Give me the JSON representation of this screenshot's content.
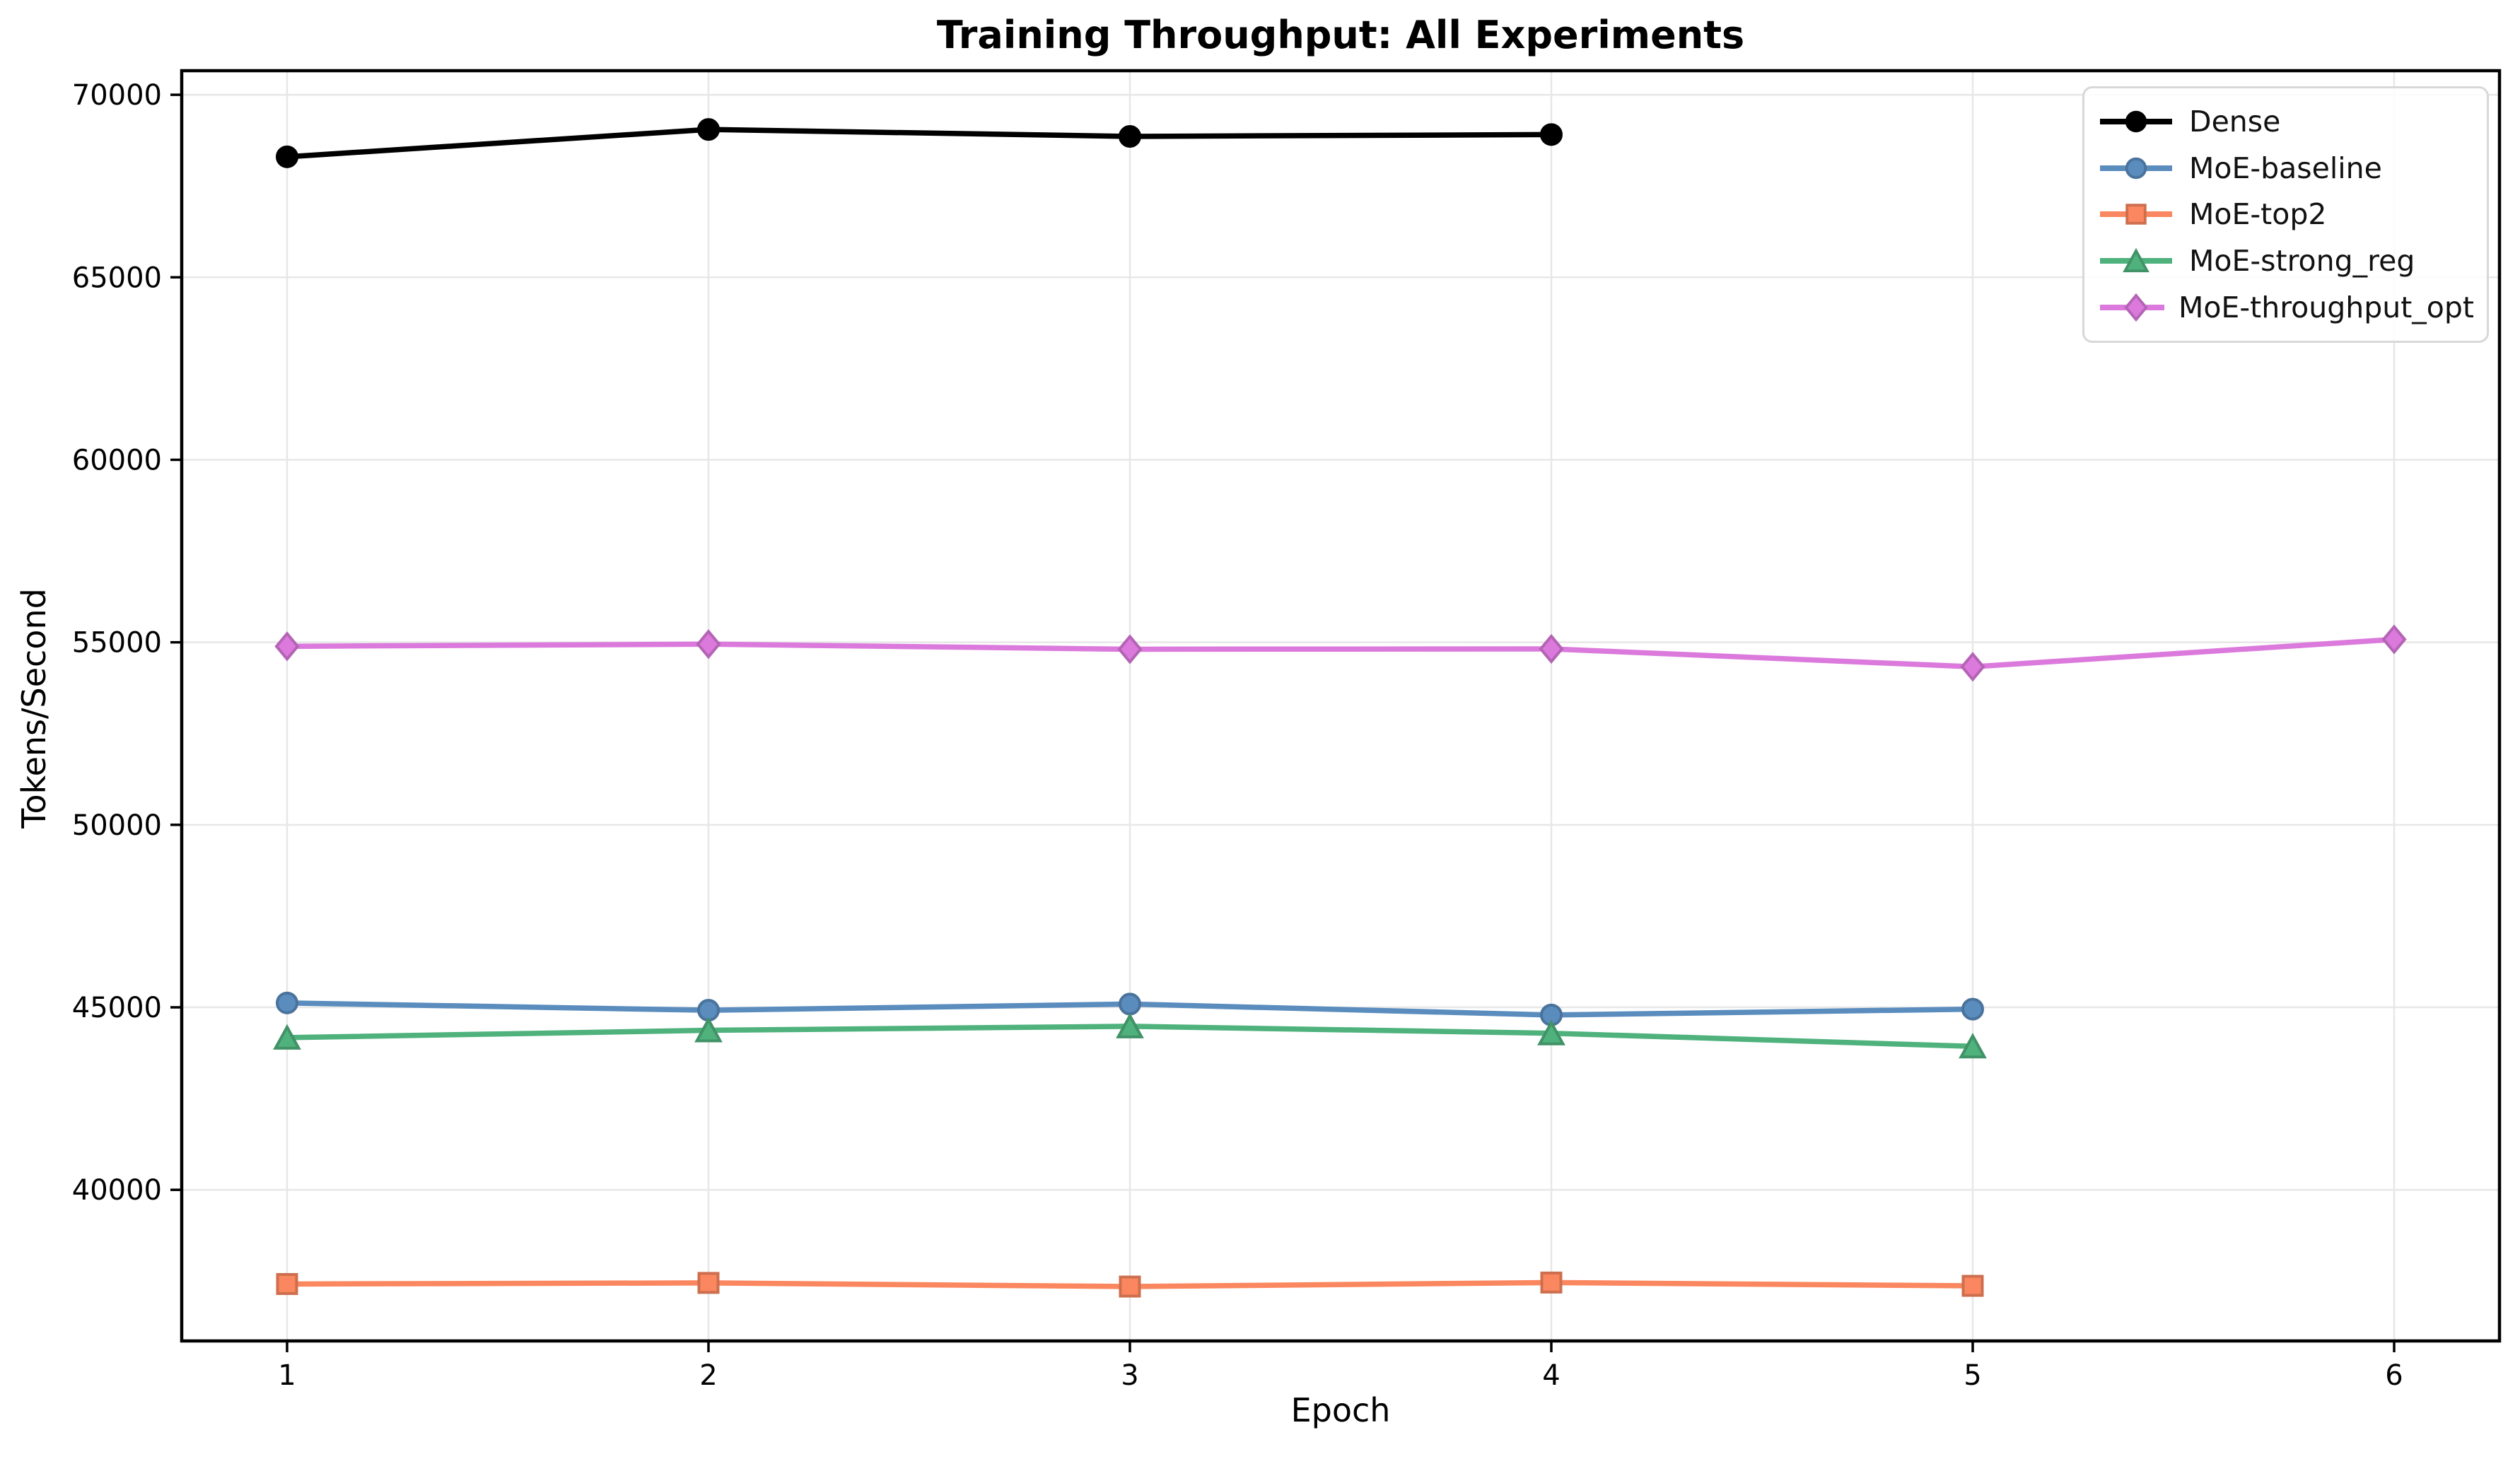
{
  "chart_data": {
    "type": "line",
    "title": "Training Throughput: All Experiments",
    "xlabel": "Epoch",
    "ylabel": "Tokens/Second",
    "x_ticks": [
      1,
      2,
      3,
      4,
      5,
      6
    ],
    "y_ticks": [
      40000,
      45000,
      50000,
      55000,
      60000,
      65000,
      70000
    ],
    "xlim": [
      0.75,
      6.25
    ],
    "ylim": [
      35860,
      70660
    ],
    "grid": true,
    "legend_position": "upper right",
    "background_color": "#ffffff",
    "grid_color": "#e7e7e7",
    "spine_color": "#000000",
    "series": [
      {
        "name": "Dense",
        "color": "#000000",
        "marker": "circle",
        "x": [
          1,
          2,
          3,
          4
        ],
        "values": [
          68300,
          69050,
          68860,
          68910
        ]
      },
      {
        "name": "MoE-baseline",
        "color": "#5A8CBE",
        "marker": "circle",
        "x": [
          1,
          2,
          3,
          4,
          5
        ],
        "values": [
          45120,
          44920,
          45090,
          44790,
          44950
        ]
      },
      {
        "name": "MoE-top2",
        "color": "#FA875F",
        "marker": "square",
        "x": [
          1,
          2,
          3,
          4,
          5
        ],
        "values": [
          37420,
          37450,
          37350,
          37460,
          37370
        ]
      },
      {
        "name": "MoE-strong_reg",
        "color": "#4FB27D",
        "marker": "triangle",
        "x": [
          1,
          2,
          3,
          4,
          5
        ],
        "values": [
          44170,
          44370,
          44480,
          44290,
          43930
        ]
      },
      {
        "name": "MoE-throughput_opt",
        "color": "#DB7ADC",
        "marker": "diamond",
        "x": [
          1,
          2,
          3,
          4,
          5,
          6
        ],
        "values": [
          54890,
          54950,
          54810,
          54820,
          54330,
          55080
        ]
      }
    ]
  }
}
